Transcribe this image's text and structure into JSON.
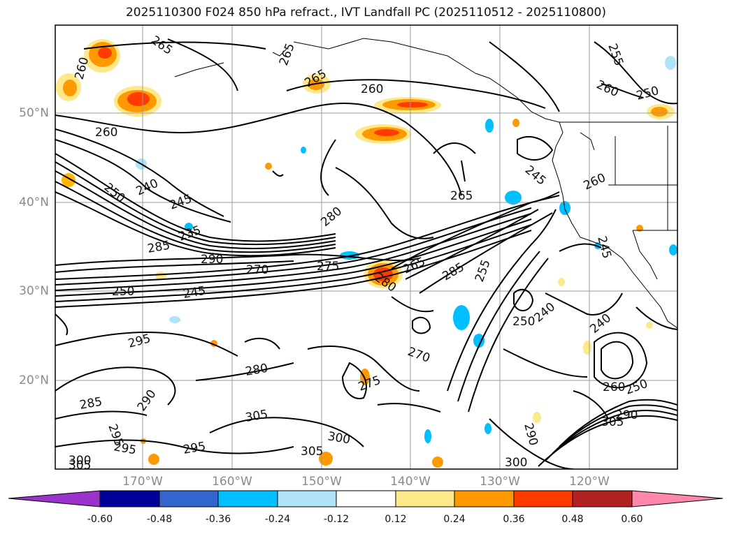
{
  "title": "2025110300 F024 850 hPa refract., IVT Landfall PC (2025110512 - 2025110800)",
  "lat_labels": [
    "50°N",
    "40°N",
    "30°N",
    "20°N"
  ],
  "lon_labels": [
    "170°W",
    "160°W",
    "150°W",
    "140°W",
    "130°W",
    "120°W"
  ],
  "colorbar": {
    "ticks": [
      "-0.60",
      "-0.48",
      "-0.36",
      "-0.24",
      "-0.12",
      "0.12",
      "0.24",
      "0.36",
      "0.48",
      "0.60"
    ],
    "colors": [
      "#9933cc",
      "#000099",
      "#3366cc",
      "#00bfff",
      "#aee3fa",
      "#ffffff",
      "#fde98a",
      "#ff9900",
      "#ff3b00",
      "#b22222",
      "#ff88aa"
    ]
  },
  "contour_labels": [
    {
      "text": "265",
      "name": "contour-label-265-a"
    },
    {
      "text": "260",
      "name": "contour-label-260-a"
    },
    {
      "text": "265",
      "name": "contour-label-265-b"
    },
    {
      "text": "260",
      "name": "contour-label-260-b"
    },
    {
      "text": "255",
      "name": "contour-label-255-a"
    },
    {
      "text": "260",
      "name": "contour-label-260-c"
    },
    {
      "text": "250",
      "name": "contour-label-250-a"
    },
    {
      "text": "265",
      "name": "contour-label-265-c"
    },
    {
      "text": "260",
      "name": "contour-label-260-d"
    },
    {
      "text": "240",
      "name": "contour-label-240-a"
    },
    {
      "text": "245",
      "name": "contour-label-245-a"
    },
    {
      "text": "250",
      "name": "contour-label-250-b"
    },
    {
      "text": "280",
      "name": "contour-label-280-a"
    },
    {
      "text": "265",
      "name": "contour-label-265-d"
    },
    {
      "text": "260",
      "name": "contour-label-260-e"
    },
    {
      "text": "245",
      "name": "contour-label-245-b"
    },
    {
      "text": "235",
      "name": "contour-label-235-a"
    },
    {
      "text": "285",
      "name": "contour-label-285-a"
    },
    {
      "text": "290",
      "name": "contour-label-290-a"
    },
    {
      "text": "275",
      "name": "contour-label-275-a"
    },
    {
      "text": "270",
      "name": "contour-label-270-a"
    },
    {
      "text": "280",
      "name": "contour-label-280-b"
    },
    {
      "text": "265",
      "name": "contour-label-265-e"
    },
    {
      "text": "285",
      "name": "contour-label-285-b"
    },
    {
      "text": "250",
      "name": "contour-label-250-c"
    },
    {
      "text": "245",
      "name": "contour-label-245-c"
    },
    {
      "text": "255",
      "name": "contour-label-255-b"
    },
    {
      "text": "250",
      "name": "contour-label-250-d"
    },
    {
      "text": "240",
      "name": "contour-label-240-b"
    },
    {
      "text": "240",
      "name": "contour-label-240-c"
    },
    {
      "text": "295",
      "name": "contour-label-295-a"
    },
    {
      "text": "270",
      "name": "contour-label-270-b"
    },
    {
      "text": "280",
      "name": "contour-label-280-c"
    },
    {
      "text": "285",
      "name": "contour-label-285-c"
    },
    {
      "text": "290",
      "name": "contour-label-290-b"
    },
    {
      "text": "305",
      "name": "contour-label-305-a"
    },
    {
      "text": "275",
      "name": "contour-label-275-b"
    },
    {
      "text": "295",
      "name": "contour-label-295-b"
    },
    {
      "text": "300",
      "name": "contour-label-300-a"
    },
    {
      "text": "305",
      "name": "contour-label-305-b"
    },
    {
      "text": "295",
      "name": "contour-label-295-c"
    },
    {
      "text": "295",
      "name": "contour-label-295-d"
    },
    {
      "text": "300",
      "name": "contour-label-300-b"
    },
    {
      "text": "305",
      "name": "contour-label-305-c"
    },
    {
      "text": "260",
      "name": "contour-label-260-f"
    },
    {
      "text": "250",
      "name": "contour-label-250-e"
    },
    {
      "text": "305",
      "name": "contour-label-305-d"
    },
    {
      "text": "290",
      "name": "contour-label-290-c"
    },
    {
      "text": "300",
      "name": "contour-label-300-c"
    },
    {
      "text": "290",
      "name": "contour-label-290-d"
    },
    {
      "text": "245",
      "name": "contour-label-245-d"
    }
  ]
}
